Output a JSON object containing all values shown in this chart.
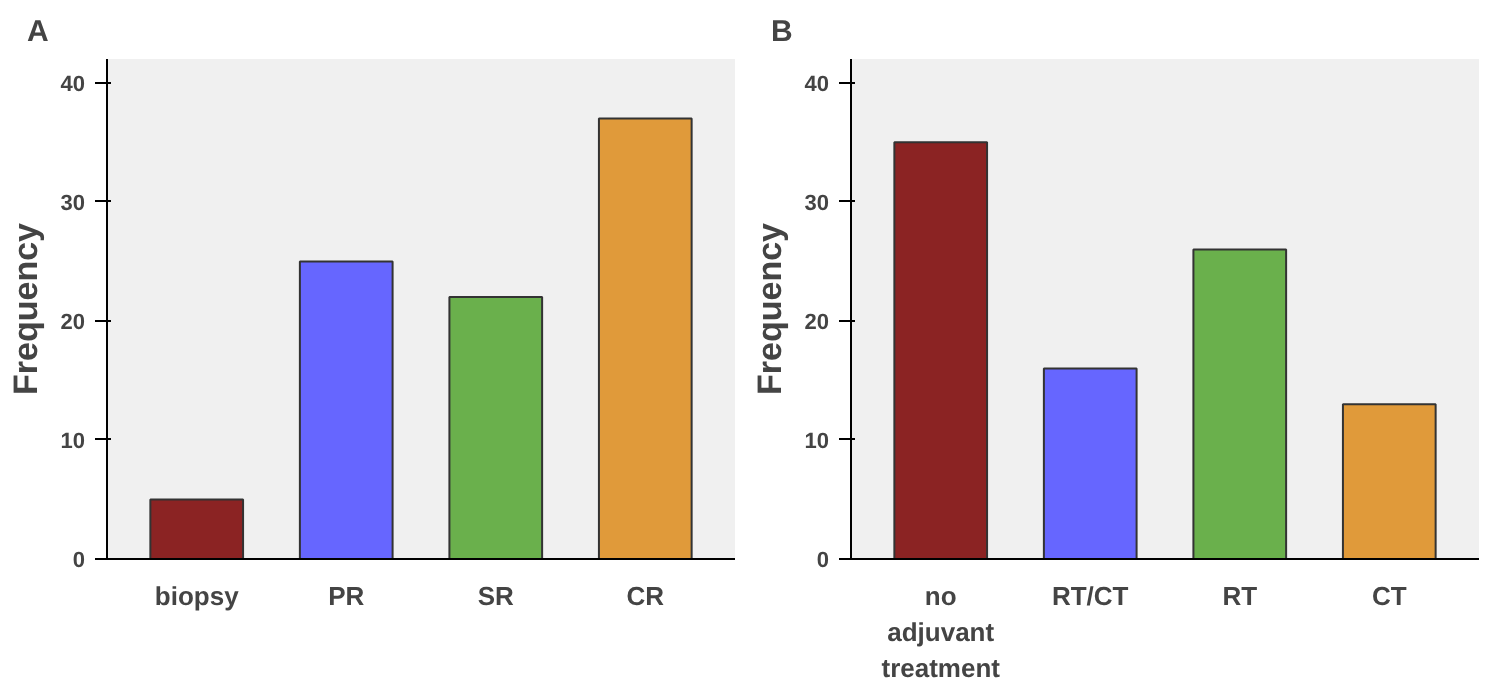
{
  "chart_data": [
    {
      "type": "bar",
      "title": "A",
      "ylabel": "Frequency",
      "categories": [
        "biopsy",
        "PR",
        "SR",
        "CR"
      ],
      "values": [
        5,
        25,
        22,
        37
      ],
      "colors": [
        "#8b2323",
        "#6666ff",
        "#6ab04c",
        "#e09a3a"
      ],
      "ylim": [
        0,
        42
      ],
      "yticks": [
        0,
        10,
        20,
        30,
        40
      ],
      "grid": false
    },
    {
      "type": "bar",
      "title": "B",
      "ylabel": "Frequency",
      "categories": [
        "no\nadjuvant\ntreatment",
        "RT/CT",
        "RT",
        "CT"
      ],
      "values": [
        35,
        16,
        26,
        13
      ],
      "colors": [
        "#8b2323",
        "#6666ff",
        "#6ab04c",
        "#e09a3a"
      ],
      "ylim": [
        0,
        42
      ],
      "yticks": [
        0,
        10,
        20,
        30,
        40
      ],
      "grid": false
    }
  ]
}
